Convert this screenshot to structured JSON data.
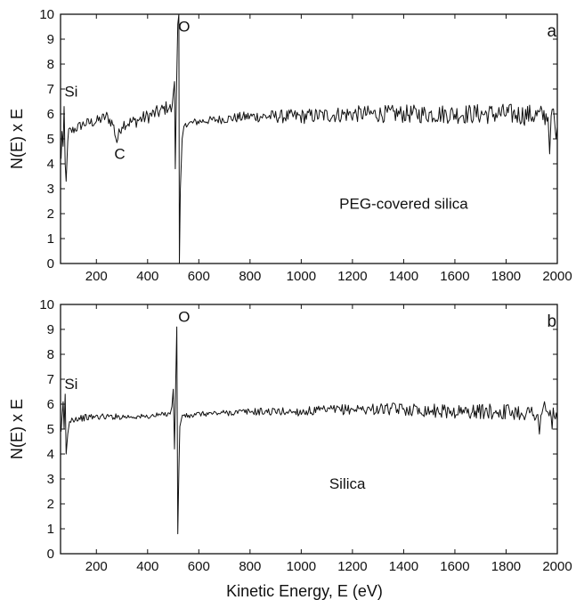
{
  "figure": {
    "xlabel": "Kinetic Energy, E (eV)"
  },
  "chart_data": [
    {
      "type": "line",
      "panel": "a",
      "ylabel": "N(E) x E",
      "xlim": [
        60,
        2000
      ],
      "ylim": [
        0,
        10
      ],
      "x_ticks": [
        200,
        400,
        600,
        800,
        1000,
        1200,
        1400,
        1600,
        1800,
        2000
      ],
      "y_ticks": [
        0,
        1,
        2,
        3,
        4,
        5,
        6,
        7,
        8,
        9,
        10
      ],
      "grid": false,
      "annotations": [
        {
          "text": "Si",
          "x": 75,
          "y": 6.7
        },
        {
          "text": "C",
          "x": 270,
          "y": 4.2
        },
        {
          "text": "O",
          "x": 520,
          "y": 9.3
        },
        {
          "text": "a",
          "x": 1960,
          "y": 9.1
        },
        {
          "text": "PEG-covered silica",
          "x": 1400,
          "y": 2.2
        }
      ],
      "series": [
        {
          "baseline": [
            [
              60,
              4.6
            ],
            [
              80,
              5.3
            ],
            [
              100,
              5.3
            ],
            [
              150,
              5.6
            ],
            [
              200,
              5.7
            ],
            [
              240,
              5.9
            ],
            [
              265,
              5.6
            ],
            [
              280,
              4.9
            ],
            [
              300,
              5.6
            ],
            [
              350,
              5.7
            ],
            [
              400,
              5.9
            ],
            [
              450,
              6.1
            ],
            [
              480,
              6.3
            ],
            [
              500,
              6.1
            ],
            [
              560,
              5.6
            ],
            [
              600,
              5.7
            ],
            [
              700,
              5.8
            ],
            [
              800,
              5.9
            ],
            [
              1000,
              5.9
            ],
            [
              1200,
              6.0
            ],
            [
              1400,
              6.0
            ],
            [
              1600,
              6.0
            ],
            [
              1800,
              6.0
            ],
            [
              2000,
              5.9
            ]
          ],
          "noise": [
            [
              60,
              0.35
            ],
            [
              100,
              0.2
            ],
            [
              450,
              0.3
            ],
            [
              600,
              0.15
            ],
            [
              1000,
              0.3
            ],
            [
              1500,
              0.38
            ],
            [
              2000,
              0.45
            ]
          ],
          "spikes": [
            [
              62,
              4.2
            ],
            [
              66,
              5.3
            ],
            [
              70,
              4.7
            ],
            [
              74,
              6.3
            ],
            [
              78,
              4.0
            ],
            [
              82,
              3.3
            ],
            [
              88,
              4.9
            ],
            [
              500,
              6.8
            ],
            [
              505,
              7.3
            ],
            [
              508,
              3.8
            ],
            [
              512,
              6.5
            ],
            [
              518,
              9.6
            ],
            [
              522,
              10.0
            ],
            [
              524,
              0.0
            ],
            [
              528,
              3.0
            ],
            [
              535,
              5.0
            ],
            [
              542,
              5.5
            ],
            [
              1970,
              4.4
            ],
            [
              1985,
              6.2
            ],
            [
              1995,
              5.0
            ]
          ]
        }
      ]
    },
    {
      "type": "line",
      "panel": "b",
      "ylabel": "N(E) x E",
      "xlim": [
        60,
        2000
      ],
      "ylim": [
        0,
        10
      ],
      "x_ticks": [
        200,
        400,
        600,
        800,
        1000,
        1200,
        1400,
        1600,
        1800,
        2000
      ],
      "y_ticks": [
        0,
        1,
        2,
        3,
        4,
        5,
        6,
        7,
        8,
        9,
        10
      ],
      "grid": false,
      "annotations": [
        {
          "text": "Si",
          "x": 75,
          "y": 6.6
        },
        {
          "text": "O",
          "x": 520,
          "y": 9.3
        },
        {
          "text": "b",
          "x": 1960,
          "y": 9.1
        },
        {
          "text": "Silica",
          "x": 1180,
          "y": 2.6
        }
      ],
      "series": [
        {
          "baseline": [
            [
              60,
              5.2
            ],
            [
              80,
              5.2
            ],
            [
              100,
              5.4
            ],
            [
              200,
              5.5
            ],
            [
              400,
              5.5
            ],
            [
              470,
              5.6
            ],
            [
              500,
              5.7
            ],
            [
              560,
              5.5
            ],
            [
              600,
              5.6
            ],
            [
              800,
              5.7
            ],
            [
              1000,
              5.7
            ],
            [
              1200,
              5.8
            ],
            [
              1400,
              5.8
            ],
            [
              1600,
              5.7
            ],
            [
              1800,
              5.7
            ],
            [
              2000,
              5.6
            ]
          ],
          "noise": [
            [
              60,
              0.15
            ],
            [
              400,
              0.1
            ],
            [
              600,
              0.1
            ],
            [
              1000,
              0.18
            ],
            [
              1400,
              0.25
            ],
            [
              2000,
              0.35
            ]
          ],
          "spikes": [
            [
              62,
              4.9
            ],
            [
              66,
              5.5
            ],
            [
              70,
              6.1
            ],
            [
              74,
              5.0
            ],
            [
              78,
              6.4
            ],
            [
              82,
              4.0
            ],
            [
              88,
              4.8
            ],
            [
              95,
              5.3
            ],
            [
              495,
              5.9
            ],
            [
              500,
              6.6
            ],
            [
              505,
              4.2
            ],
            [
              510,
              6.9
            ],
            [
              514,
              9.1
            ],
            [
              518,
              0.8
            ],
            [
              522,
              3.3
            ],
            [
              526,
              5.1
            ],
            [
              532,
              5.4
            ],
            [
              1930,
              4.8
            ],
            [
              1950,
              6.1
            ],
            [
              1980,
              5.0
            ]
          ]
        }
      ]
    }
  ]
}
